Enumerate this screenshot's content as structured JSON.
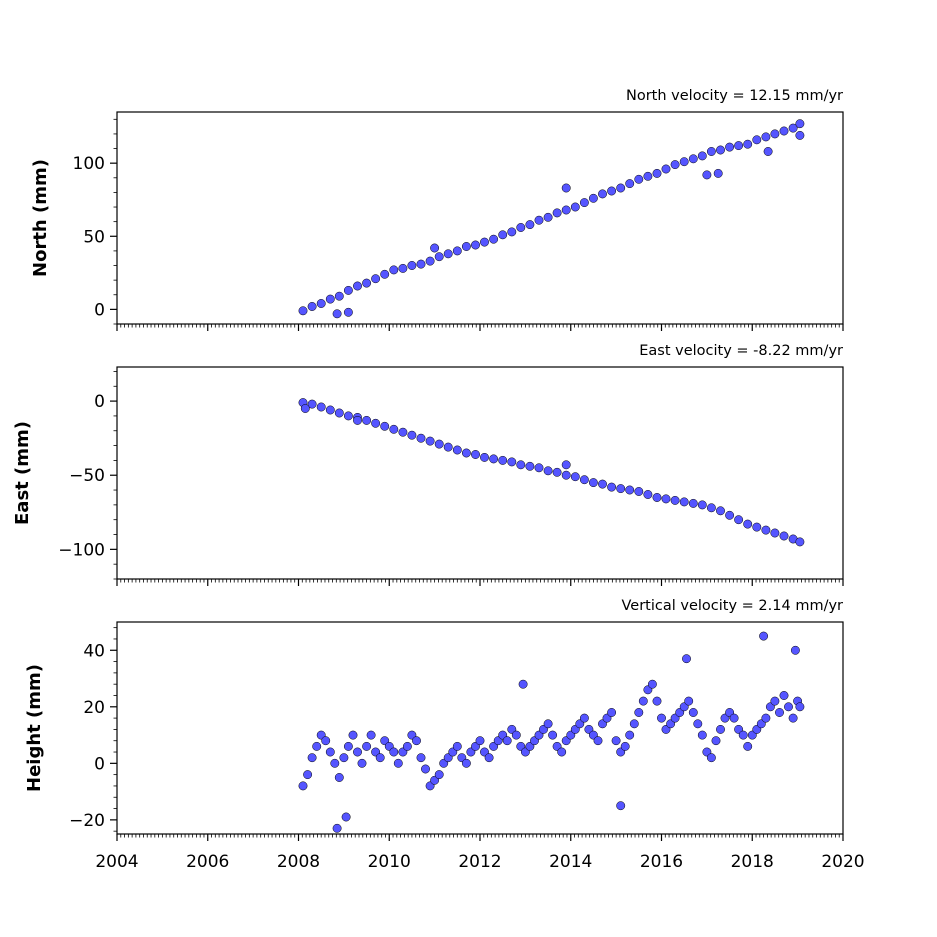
{
  "chart_data": [
    {
      "type": "scatter",
      "title": "North velocity = 12.15 mm/yr",
      "ylabel": "North (mm)",
      "xlim": [
        2004,
        2020
      ],
      "ylim": [
        -10,
        135
      ],
      "yticks": [
        0,
        50,
        100
      ],
      "x_tick_labels_shown": false,
      "grid": false,
      "marker_color": "#5555ff",
      "marker_edge_color": "#000000",
      "series": [
        {
          "x": [
            2008.1,
            2008.3,
            2008.5,
            2008.7,
            2008.9,
            2009.1,
            2009.3,
            2009.5,
            2009.7,
            2009.9,
            2010.1,
            2010.3,
            2010.5,
            2010.7,
            2010.9,
            2011.1,
            2011.3,
            2011.5,
            2011.7,
            2011.9,
            2012.1,
            2012.3,
            2012.5,
            2012.7,
            2012.9,
            2013.1,
            2013.3,
            2013.5,
            2013.7,
            2013.9,
            2014.1,
            2014.3,
            2014.5,
            2014.7,
            2014.9,
            2015.1,
            2015.3,
            2015.5,
            2015.7,
            2015.9,
            2016.1,
            2016.3,
            2016.5,
            2016.7,
            2016.9,
            2017.1,
            2017.3,
            2017.5,
            2017.7,
            2017.9,
            2018.1,
            2018.3,
            2018.5,
            2018.7,
            2018.9,
            2019.05,
            2008.85,
            2009.1,
            2011.0,
            2013.9,
            2017.0,
            2017.25,
            2018.35,
            2019.05
          ],
          "y": [
            -1,
            2,
            4,
            7,
            9,
            13,
            16,
            18,
            21,
            24,
            27,
            28,
            30,
            31,
            33,
            36,
            38,
            40,
            43,
            44,
            46,
            48,
            51,
            53,
            56,
            58,
            61,
            63,
            66,
            68,
            70,
            73,
            76,
            79,
            81,
            83,
            86,
            89,
            91,
            93,
            96,
            99,
            101,
            103,
            105,
            108,
            109,
            111,
            112,
            113,
            116,
            118,
            120,
            122,
            124,
            127,
            -3,
            -2,
            42,
            83,
            92,
            93,
            108,
            119
          ]
        }
      ]
    },
    {
      "type": "scatter",
      "title": "East velocity = -8.22 mm/yr",
      "ylabel": "East (mm)",
      "xlim": [
        2004,
        2020
      ],
      "ylim": [
        -120,
        23
      ],
      "yticks": [
        0,
        -50,
        -100
      ],
      "ytick_labels": [
        "0",
        "−50",
        "−100"
      ],
      "x_tick_labels_shown": false,
      "grid": false,
      "marker_color": "#5555ff",
      "marker_edge_color": "#000000",
      "series": [
        {
          "x": [
            2008.1,
            2008.3,
            2008.5,
            2008.7,
            2008.9,
            2009.1,
            2009.3,
            2009.5,
            2009.7,
            2009.9,
            2010.1,
            2010.3,
            2010.5,
            2010.7,
            2010.9,
            2011.1,
            2011.3,
            2011.5,
            2011.7,
            2011.9,
            2012.1,
            2012.3,
            2012.5,
            2012.7,
            2012.9,
            2013.1,
            2013.3,
            2013.5,
            2013.7,
            2013.9,
            2014.1,
            2014.3,
            2014.5,
            2014.7,
            2014.9,
            2015.1,
            2015.3,
            2015.5,
            2015.7,
            2015.9,
            2016.1,
            2016.3,
            2016.5,
            2016.7,
            2016.9,
            2017.1,
            2017.3,
            2017.5,
            2017.7,
            2017.9,
            2018.1,
            2018.3,
            2018.5,
            2018.7,
            2018.9,
            2019.05,
            2008.15,
            2009.3,
            2013.9
          ],
          "y": [
            -1,
            -2,
            -4,
            -6,
            -8,
            -10,
            -11,
            -13,
            -15,
            -17,
            -19,
            -21,
            -23,
            -25,
            -27,
            -29,
            -31,
            -33,
            -35,
            -36,
            -38,
            -39,
            -40,
            -41,
            -43,
            -44,
            -45,
            -47,
            -48,
            -50,
            -51,
            -53,
            -55,
            -56,
            -58,
            -59,
            -60,
            -61,
            -63,
            -65,
            -66,
            -67,
            -68,
            -69,
            -70,
            -72,
            -74,
            -77,
            -80,
            -83,
            -85,
            -87,
            -89,
            -91,
            -93,
            -95,
            -5,
            -13,
            -43
          ]
        }
      ]
    },
    {
      "type": "scatter",
      "title": "Vertical velocity = 2.14 mm/yr",
      "ylabel": "Height (mm)",
      "xlim": [
        2004,
        2020
      ],
      "ylim": [
        -25,
        50
      ],
      "yticks": [
        -20,
        0,
        20,
        40
      ],
      "ytick_labels": [
        "−20",
        "0",
        "20",
        "40"
      ],
      "x_tick_labels_shown": true,
      "xticks": [
        2004,
        2006,
        2008,
        2010,
        2012,
        2014,
        2016,
        2018,
        2020
      ],
      "grid": false,
      "marker_color": "#5555ff",
      "marker_edge_color": "#000000",
      "series": [
        {
          "x": [
            2008.1,
            2008.2,
            2008.3,
            2008.4,
            2008.5,
            2008.6,
            2008.7,
            2008.8,
            2008.9,
            2009.0,
            2009.1,
            2009.2,
            2009.3,
            2009.4,
            2009.5,
            2009.6,
            2009.7,
            2009.8,
            2009.9,
            2010.0,
            2010.1,
            2010.2,
            2010.3,
            2010.4,
            2010.5,
            2010.6,
            2010.7,
            2010.8,
            2010.9,
            2011.0,
            2011.1,
            2011.2,
            2011.3,
            2011.4,
            2011.5,
            2011.6,
            2011.7,
            2011.8,
            2011.9,
            2012.0,
            2012.1,
            2012.2,
            2012.3,
            2012.4,
            2012.5,
            2012.6,
            2012.7,
            2012.8,
            2012.9,
            2013.0,
            2013.1,
            2013.2,
            2013.3,
            2013.4,
            2013.5,
            2013.6,
            2013.7,
            2013.8,
            2013.9,
            2014.0,
            2014.1,
            2014.2,
            2014.3,
            2014.4,
            2014.5,
            2014.6,
            2014.7,
            2014.8,
            2014.9,
            2015.0,
            2015.1,
            2015.2,
            2015.3,
            2015.4,
            2015.5,
            2015.6,
            2015.7,
            2015.8,
            2015.9,
            2016.0,
            2016.1,
            2016.2,
            2016.3,
            2016.4,
            2016.5,
            2016.6,
            2016.7,
            2016.8,
            2016.9,
            2017.0,
            2017.1,
            2017.2,
            2017.3,
            2017.4,
            2017.5,
            2017.6,
            2017.7,
            2017.8,
            2017.9,
            2018.0,
            2018.1,
            2018.2,
            2018.3,
            2018.4,
            2018.5,
            2018.6,
            2018.7,
            2018.8,
            2018.9,
            2019.0,
            2019.05,
            2018.25,
            2008.85,
            2009.05,
            2015.1,
            2012.95,
            2016.55,
            2018.95
          ],
          "y": [
            -8,
            -4,
            2,
            6,
            10,
            8,
            4,
            0,
            -5,
            2,
            6,
            10,
            4,
            0,
            6,
            10,
            4,
            2,
            8,
            6,
            4,
            0,
            4,
            6,
            10,
            8,
            2,
            -2,
            -8,
            -6,
            -4,
            0,
            2,
            4,
            6,
            2,
            0,
            4,
            6,
            8,
            4,
            2,
            6,
            8,
            10,
            8,
            12,
            10,
            6,
            4,
            6,
            8,
            10,
            12,
            14,
            10,
            6,
            4,
            8,
            10,
            12,
            14,
            16,
            12,
            10,
            8,
            14,
            16,
            18,
            8,
            4,
            6,
            10,
            14,
            18,
            22,
            26,
            28,
            22,
            16,
            12,
            14,
            16,
            18,
            20,
            22,
            18,
            14,
            10,
            4,
            2,
            8,
            12,
            16,
            18,
            16,
            12,
            10,
            6,
            10,
            12,
            14,
            16,
            20,
            22,
            18,
            24,
            20,
            16,
            22,
            20,
            45,
            -23,
            -19,
            -15,
            28,
            37,
            40
          ]
        }
      ]
    }
  ]
}
